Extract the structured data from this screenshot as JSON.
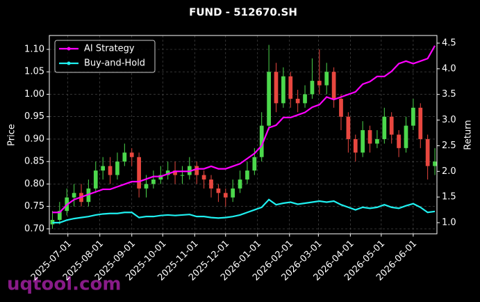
{
  "chart_data": {
    "type": "candlestick",
    "title": "FUND - 512670.SH",
    "y_label": "Price",
    "y2_label": "Return",
    "watermark": "uqtool.com",
    "x": [
      "2025-06-16",
      "2025-06-23",
      "2025-06-30",
      "2025-07-07",
      "2025-07-14",
      "2025-07-21",
      "2025-07-28",
      "2025-08-04",
      "2025-08-11",
      "2025-08-18",
      "2025-08-25",
      "2025-09-01",
      "2025-09-08",
      "2025-09-15",
      "2025-09-22",
      "2025-09-29",
      "2025-10-06",
      "2025-10-13",
      "2025-10-20",
      "2025-10-27",
      "2025-11-03",
      "2025-11-10",
      "2025-11-17",
      "2025-11-24",
      "2025-12-01",
      "2025-12-08",
      "2025-12-15",
      "2025-12-22",
      "2025-12-29",
      "2026-01-05",
      "2026-01-12",
      "2026-01-19",
      "2026-01-26",
      "2026-02-02",
      "2026-02-09",
      "2026-02-16",
      "2026-02-23",
      "2026-03-02",
      "2026-03-09",
      "2026-03-16",
      "2026-03-23",
      "2026-03-30",
      "2026-04-06",
      "2026-04-13",
      "2026-04-20",
      "2026-04-27",
      "2026-05-04",
      "2026-05-11",
      "2026-05-18",
      "2026-05-25",
      "2026-06-01",
      "2026-06-08",
      "2026-06-15",
      "2026-06-22"
    ],
    "open": [
      0.71,
      0.72,
      0.74,
      0.77,
      0.78,
      0.76,
      0.79,
      0.83,
      0.84,
      0.82,
      0.85,
      0.87,
      0.86,
      0.79,
      0.8,
      0.81,
      0.82,
      0.83,
      0.82,
      0.82,
      0.84,
      0.82,
      0.81,
      0.79,
      0.78,
      0.77,
      0.79,
      0.81,
      0.83,
      0.86,
      0.93,
      1.05,
      0.98,
      1.04,
      0.99,
      0.98,
      1.0,
      1.03,
      1.02,
      1.05,
      0.99,
      0.95,
      0.9,
      0.87,
      0.92,
      0.89,
      0.9,
      0.95,
      0.91,
      0.88,
      0.93,
      0.97,
      0.9,
      0.84
    ],
    "high": [
      0.74,
      0.76,
      0.79,
      0.8,
      0.8,
      0.81,
      0.85,
      0.86,
      0.86,
      0.87,
      0.89,
      0.88,
      0.87,
      0.82,
      0.83,
      0.84,
      0.85,
      0.85,
      0.84,
      0.86,
      0.85,
      0.83,
      0.82,
      0.8,
      0.79,
      0.81,
      0.83,
      0.85,
      0.88,
      0.96,
      1.11,
      1.07,
      1.06,
      1.05,
      1.01,
      1.02,
      1.08,
      1.1,
      1.07,
      1.06,
      1.0,
      0.96,
      0.91,
      0.94,
      0.93,
      0.92,
      0.97,
      0.96,
      0.92,
      0.95,
      0.99,
      0.98,
      0.91,
      0.88
    ],
    "low": [
      0.7,
      0.71,
      0.73,
      0.75,
      0.75,
      0.75,
      0.78,
      0.81,
      0.8,
      0.81,
      0.84,
      0.84,
      0.77,
      0.77,
      0.79,
      0.8,
      0.81,
      0.8,
      0.8,
      0.81,
      0.8,
      0.79,
      0.77,
      0.76,
      0.75,
      0.76,
      0.78,
      0.8,
      0.82,
      0.85,
      0.92,
      0.96,
      0.97,
      0.97,
      0.96,
      0.97,
      0.99,
      1.0,
      1.0,
      0.97,
      0.92,
      0.87,
      0.85,
      0.86,
      0.87,
      0.88,
      0.89,
      0.89,
      0.86,
      0.87,
      0.92,
      0.88,
      0.81,
      0.82
    ],
    "close": [
      0.72,
      0.74,
      0.77,
      0.78,
      0.76,
      0.79,
      0.83,
      0.84,
      0.82,
      0.85,
      0.87,
      0.86,
      0.79,
      0.8,
      0.81,
      0.82,
      0.83,
      0.82,
      0.82,
      0.84,
      0.82,
      0.81,
      0.79,
      0.78,
      0.77,
      0.79,
      0.81,
      0.83,
      0.86,
      0.93,
      1.05,
      0.98,
      1.04,
      0.99,
      0.98,
      1.0,
      1.03,
      1.02,
      1.05,
      0.99,
      0.95,
      0.9,
      0.87,
      0.92,
      0.89,
      0.9,
      0.95,
      0.91,
      0.88,
      0.93,
      0.97,
      0.9,
      0.84,
      0.85
    ],
    "up_color": "#4cd84c",
    "down_color": "#e8473f",
    "series": [
      {
        "name": "AI Strategy",
        "color": "#ff00ff",
        "axis": "y2",
        "values": [
          1.2,
          1.2,
          1.35,
          1.45,
          1.5,
          1.55,
          1.6,
          1.65,
          1.65,
          1.7,
          1.75,
          1.8,
          1.8,
          1.85,
          1.9,
          1.9,
          1.95,
          2.0,
          2.0,
          2.0,
          2.05,
          2.05,
          2.1,
          2.05,
          2.05,
          2.1,
          2.15,
          2.25,
          2.35,
          2.5,
          2.85,
          2.9,
          3.05,
          3.05,
          3.1,
          3.15,
          3.25,
          3.3,
          3.45,
          3.4,
          3.45,
          3.5,
          3.55,
          3.7,
          3.75,
          3.85,
          3.85,
          3.95,
          4.1,
          4.15,
          4.1,
          4.15,
          4.2,
          4.45
        ]
      },
      {
        "name": "Buy-and-Hold",
        "color": "#1ff0f0",
        "axis": "y2",
        "values": [
          1.0,
          1.0,
          1.05,
          1.08,
          1.1,
          1.12,
          1.15,
          1.17,
          1.18,
          1.18,
          1.2,
          1.2,
          1.1,
          1.12,
          1.12,
          1.14,
          1.15,
          1.14,
          1.15,
          1.16,
          1.12,
          1.12,
          1.1,
          1.09,
          1.1,
          1.12,
          1.15,
          1.2,
          1.25,
          1.3,
          1.45,
          1.35,
          1.38,
          1.4,
          1.36,
          1.38,
          1.4,
          1.42,
          1.4,
          1.42,
          1.35,
          1.3,
          1.25,
          1.3,
          1.28,
          1.3,
          1.35,
          1.3,
          1.28,
          1.33,
          1.37,
          1.3,
          1.2,
          1.22
        ]
      }
    ],
    "xlim": [
      "2025-06-13",
      "2026-06-24"
    ],
    "xticks": [
      "2025-07-01",
      "2025-08-01",
      "2025-09-01",
      "2025-10-01",
      "2025-11-01",
      "2025-12-01",
      "2026-01-01",
      "2026-02-01",
      "2026-03-01",
      "2026-04-01",
      "2026-05-01",
      "2026-06-01"
    ],
    "ylim": [
      0.689,
      1.131
    ],
    "yticks": [
      {
        "value": 0.7,
        "label": "0.70"
      },
      {
        "value": 0.75,
        "label": "0.75"
      },
      {
        "value": 0.8,
        "label": "0.80"
      },
      {
        "value": 0.85,
        "label": "0.85"
      },
      {
        "value": 0.9,
        "label": "0.90"
      },
      {
        "value": 0.95,
        "label": "0.95"
      },
      {
        "value": 1.0,
        "label": "1.00"
      },
      {
        "value": 1.05,
        "label": "1.05"
      },
      {
        "value": 1.1,
        "label": "1.10"
      }
    ],
    "y2lim": [
      0.783,
      4.649
    ],
    "y2ticks": [
      {
        "value": 1,
        "label": "1.0"
      },
      1.5,
      {
        "value": 2,
        "label": "2.0"
      },
      2.5,
      {
        "value": 3,
        "label": "3.0"
      },
      3.5,
      {
        "value": 4,
        "label": "4.0"
      },
      4.5
    ],
    "grid": true,
    "legend": "upper left"
  }
}
